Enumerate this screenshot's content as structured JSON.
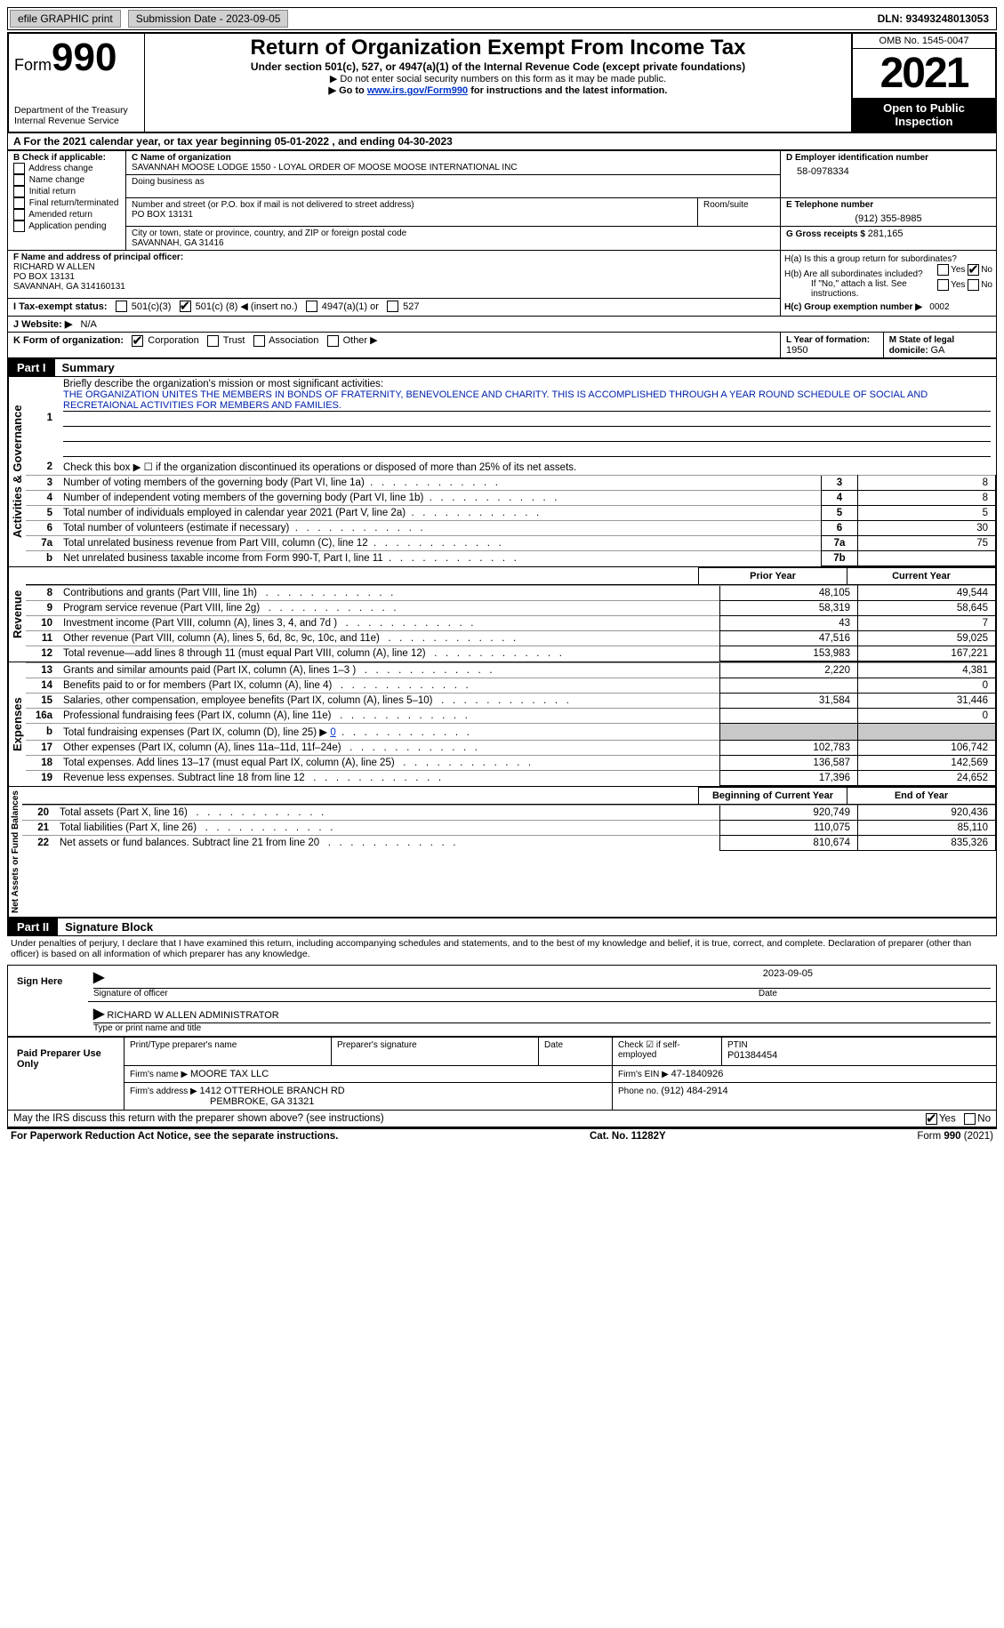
{
  "topBar": {
    "efile": "efile GRAPHIC print",
    "submission": "Submission Date - 2023-09-05",
    "dln": "DLN: 93493248013053"
  },
  "header": {
    "formWord": "Form",
    "formNum": "990",
    "dept": "Department of the Treasury",
    "irs": "Internal Revenue Service",
    "title": "Return of Organization Exempt From Income Tax",
    "sub": "Under section 501(c), 527, or 4947(a)(1) of the Internal Revenue Code (except private foundations)",
    "instr1": "▶ Do not enter social security numbers on this form as it may be made public.",
    "instr2_pre": "▶ Go to ",
    "instr2_link": "www.irs.gov/Form990",
    "instr2_post": " for instructions and the latest information.",
    "omb": "OMB No. 1545-0047",
    "year": "2021",
    "openPublic": "Open to Public Inspection"
  },
  "taxYear": {
    "text_a": "A For the 2021 calendar year, or tax year beginning ",
    "begin": "05-01-2022",
    "text_mid": "   , and ending ",
    "end": "04-30-2023"
  },
  "boxB": {
    "label": "B Check if applicable:",
    "items": [
      "Address change",
      "Name change",
      "Initial return",
      "Final return/terminated",
      "Amended return",
      "Application pending"
    ]
  },
  "boxC": {
    "label": "C Name of organization",
    "name": "SAVANNAH MOOSE LODGE 1550 - LOYAL ORDER OF MOOSE MOOSE INTERNATIONAL INC",
    "dba_label": "Doing business as",
    "street_label": "Number and street (or P.O. box if mail is not delivered to street address)",
    "room_label": "Room/suite",
    "street": "PO BOX 13131",
    "city_label": "City or town, state or province, country, and ZIP or foreign postal code",
    "city": "SAVANNAH, GA  31416"
  },
  "boxD": {
    "label": "D Employer identification number",
    "ein": "58-0978334"
  },
  "boxE": {
    "label": "E Telephone number",
    "phone": "(912) 355-8985"
  },
  "boxG": {
    "label": "G Gross receipts $ ",
    "val": "281,165"
  },
  "boxF": {
    "label": "F Name and address of principal officer:",
    "name": "RICHARD W ALLEN",
    "line2": "PO BOX 13131",
    "line3": "SAVANNAH, GA  314160131"
  },
  "boxH": {
    "ha": "H(a)  Is this a group return for subordinates?",
    "hb": "H(b)  Are all subordinates included?",
    "hb_note": "If \"No,\" attach a list. See instructions.",
    "hc": "H(c)  Group exemption number ▶",
    "hc_val": "0002",
    "yes": "Yes",
    "no": "No"
  },
  "boxI": {
    "label": "I   Tax-exempt status:",
    "c3": "501(c)(3)",
    "c_pre": "501(c) (",
    "c_val": "8",
    "c_post": ") ◀ (insert no.)",
    "a1": "4947(a)(1) or",
    "s527": "527"
  },
  "boxJ": {
    "label": "J   Website: ▶",
    "val": "N/A"
  },
  "boxK": {
    "label": "K Form of organization:",
    "corp": "Corporation",
    "trust": "Trust",
    "assoc": "Association",
    "other": "Other ▶"
  },
  "boxL": {
    "label": "L Year of formation: ",
    "val": "1950"
  },
  "boxM": {
    "label": "M State of legal domicile: ",
    "val": "GA"
  },
  "part1": {
    "num": "Part I",
    "title": "Summary",
    "line1_label": "Briefly describe the organization's mission or most significant activities:",
    "mission": "THE ORGANIZATION UNITES THE MEMBERS IN BONDS OF FRATERNITY, BENEVOLENCE AND CHARITY. THIS IS ACCOMPLISHED THROUGH A YEAR ROUND SCHEDULE OF SOCIAL AND RECRETAIONAL ACTIVITIES FOR MEMBERS AND FAMILIES.",
    "line2": "Check this box ▶ ☐ if the organization discontinued its operations or disposed of more than 25% of its net assets.",
    "vlabels": {
      "act": "Activities & Governance",
      "rev": "Revenue",
      "exp": "Expenses",
      "net": "Net Assets or Fund Balances"
    },
    "rows_top": [
      {
        "n": "3",
        "t": "Number of voting members of the governing body (Part VI, line 1a)",
        "box": "3",
        "v": "8"
      },
      {
        "n": "4",
        "t": "Number of independent voting members of the governing body (Part VI, line 1b)",
        "box": "4",
        "v": "8"
      },
      {
        "n": "5",
        "t": "Total number of individuals employed in calendar year 2021 (Part V, line 2a)",
        "box": "5",
        "v": "5"
      },
      {
        "n": "6",
        "t": "Total number of volunteers (estimate if necessary)",
        "box": "6",
        "v": "30"
      },
      {
        "n": "7a",
        "t": "Total unrelated business revenue from Part VIII, column (C), line 12",
        "box": "7a",
        "v": "75"
      },
      {
        "n": "b",
        "t": "Net unrelated business taxable income from Form 990-T, Part I, line 11",
        "box": "7b",
        "v": ""
      }
    ],
    "col_prior": "Prior Year",
    "col_current": "Current Year",
    "col_begin": "Beginning of Current Year",
    "col_end": "End of Year",
    "rows_rev": [
      {
        "n": "8",
        "t": "Contributions and grants (Part VIII, line 1h)",
        "p": "48,105",
        "c": "49,544"
      },
      {
        "n": "9",
        "t": "Program service revenue (Part VIII, line 2g)",
        "p": "58,319",
        "c": "58,645"
      },
      {
        "n": "10",
        "t": "Investment income (Part VIII, column (A), lines 3, 4, and 7d )",
        "p": "43",
        "c": "7"
      },
      {
        "n": "11",
        "t": "Other revenue (Part VIII, column (A), lines 5, 6d, 8c, 9c, 10c, and 11e)",
        "p": "47,516",
        "c": "59,025"
      },
      {
        "n": "12",
        "t": "Total revenue—add lines 8 through 11 (must equal Part VIII, column (A), line 12)",
        "p": "153,983",
        "c": "167,221"
      }
    ],
    "rows_exp": [
      {
        "n": "13",
        "t": "Grants and similar amounts paid (Part IX, column (A), lines 1–3 )",
        "p": "2,220",
        "c": "4,381"
      },
      {
        "n": "14",
        "t": "Benefits paid to or for members (Part IX, column (A), line 4)",
        "p": "",
        "c": "0"
      },
      {
        "n": "15",
        "t": "Salaries, other compensation, employee benefits (Part IX, column (A), lines 5–10)",
        "p": "31,584",
        "c": "31,446"
      },
      {
        "n": "16a",
        "t": "Professional fundraising fees (Part IX, column (A), line 11e)",
        "p": "",
        "c": "0"
      },
      {
        "n": "b",
        "t": "Total fundraising expenses (Part IX, column (D), line 25) ▶",
        "p": "GREY",
        "c": "GREY",
        "extra": "0"
      },
      {
        "n": "17",
        "t": "Other expenses (Part IX, column (A), lines 11a–11d, 11f–24e)",
        "p": "102,783",
        "c": "106,742"
      },
      {
        "n": "18",
        "t": "Total expenses. Add lines 13–17 (must equal Part IX, column (A), line 25)",
        "p": "136,587",
        "c": "142,569"
      },
      {
        "n": "19",
        "t": "Revenue less expenses. Subtract line 18 from line 12",
        "p": "17,396",
        "c": "24,652"
      }
    ],
    "rows_net": [
      {
        "n": "20",
        "t": "Total assets (Part X, line 16)",
        "p": "920,749",
        "c": "920,436"
      },
      {
        "n": "21",
        "t": "Total liabilities (Part X, line 26)",
        "p": "110,075",
        "c": "85,110"
      },
      {
        "n": "22",
        "t": "Net assets or fund balances. Subtract line 21 from line 20",
        "p": "810,674",
        "c": "835,326"
      }
    ]
  },
  "part2": {
    "num": "Part II",
    "title": "Signature Block",
    "penalty": "Under penalties of perjury, I declare that I have examined this return, including accompanying schedules and statements, and to the best of my knowledge and belief, it is true, correct, and complete. Declaration of preparer (other than officer) is based on all information of which preparer has any knowledge.",
    "sign_here": "Sign Here",
    "sig_officer": "Signature of officer",
    "sig_date": "2023-09-05",
    "date_label": "Date",
    "officer_name": "RICHARD W ALLEN  ADMINISTRATOR",
    "type_name": "Type or print name and title",
    "paid": "Paid Preparer Use Only",
    "prep_name_label": "Print/Type preparer's name",
    "prep_sig_label": "Preparer's signature",
    "check_if": "Check ☑ if self-employed",
    "ptin_label": "PTIN",
    "ptin": "P01384454",
    "firm_name_label": "Firm's name    ▶ ",
    "firm_name": "MOORE TAX LLC",
    "firm_ein_label": "Firm's EIN ▶ ",
    "firm_ein": "47-1840926",
    "firm_addr_label": "Firm's address ▶ ",
    "firm_addr1": "1412 OTTERHOLE BRANCH RD",
    "firm_addr2": "PEMBROKE, GA  31321",
    "phone_label": "Phone no. ",
    "phone": "(912) 484-2914",
    "discuss": "May the IRS discuss this return with the preparer shown above? (see instructions)",
    "yes": "Yes",
    "no": "No"
  },
  "footer": {
    "left": "For Paperwork Reduction Act Notice, see the separate instructions.",
    "mid": "Cat. No. 11282Y",
    "right": "Form 990 (2021)"
  }
}
